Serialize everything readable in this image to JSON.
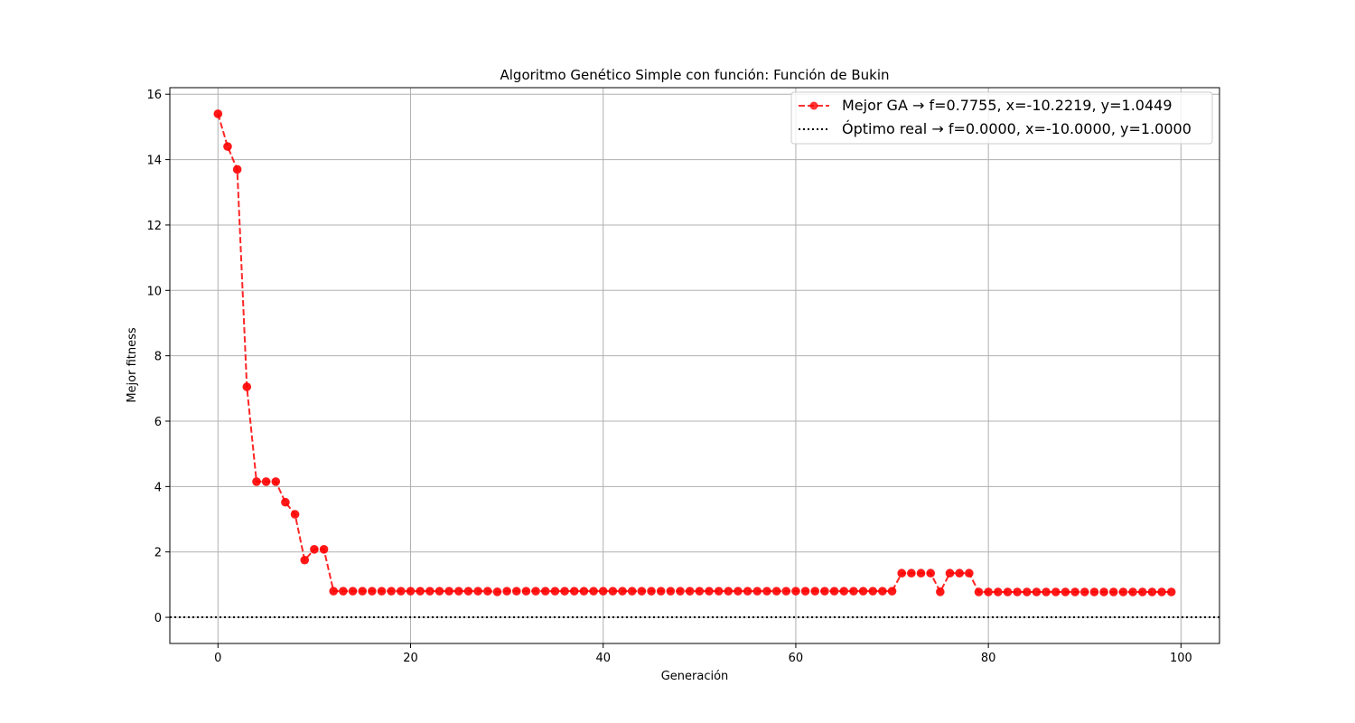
{
  "chart_data": {
    "type": "line",
    "title": "Algoritmo Genético Simple con función: Función de Bukin",
    "xlabel": "Generación",
    "ylabel": "Mejor fitness",
    "xlim": [
      -5,
      104
    ],
    "ylim": [
      -0.8,
      16.2
    ],
    "xticks": [
      0,
      20,
      40,
      60,
      80,
      100
    ],
    "yticks": [
      0,
      2,
      4,
      6,
      8,
      10,
      12,
      14,
      16
    ],
    "grid": true,
    "legend_position": "top-right",
    "series": [
      {
        "name": "Mejor GA → f=0.7755, x=-10.2219, y=1.0449",
        "style": "dashed line with circle markers",
        "color": "#ff0000",
        "x": [
          0,
          1,
          2,
          3,
          4,
          5,
          6,
          7,
          8,
          9,
          10,
          11,
          12,
          13,
          14,
          15,
          16,
          17,
          18,
          19,
          20,
          21,
          22,
          23,
          24,
          25,
          26,
          27,
          28,
          29,
          30,
          31,
          32,
          33,
          34,
          35,
          36,
          37,
          38,
          39,
          40,
          41,
          42,
          43,
          44,
          45,
          46,
          47,
          48,
          49,
          50,
          51,
          52,
          53,
          54,
          55,
          56,
          57,
          58,
          59,
          60,
          61,
          62,
          63,
          64,
          65,
          66,
          67,
          68,
          69,
          70,
          71,
          72,
          73,
          74,
          75,
          76,
          77,
          78,
          79,
          80,
          81,
          82,
          83,
          84,
          85,
          86,
          87,
          88,
          89,
          90,
          91,
          92,
          93,
          94,
          95,
          96,
          97,
          98,
          99
        ],
        "values": [
          15.4,
          14.4,
          13.7,
          7.05,
          4.15,
          4.15,
          4.15,
          3.52,
          3.15,
          1.75,
          2.08,
          2.08,
          0.8,
          0.8,
          0.8,
          0.8,
          0.8,
          0.8,
          0.8,
          0.8,
          0.8,
          0.8,
          0.8,
          0.8,
          0.8,
          0.8,
          0.8,
          0.8,
          0.8,
          0.78,
          0.8,
          0.8,
          0.8,
          0.8,
          0.8,
          0.8,
          0.8,
          0.8,
          0.8,
          0.8,
          0.8,
          0.8,
          0.8,
          0.8,
          0.8,
          0.8,
          0.8,
          0.8,
          0.8,
          0.8,
          0.8,
          0.8,
          0.8,
          0.8,
          0.8,
          0.8,
          0.8,
          0.8,
          0.8,
          0.8,
          0.8,
          0.8,
          0.8,
          0.8,
          0.8,
          0.8,
          0.8,
          0.8,
          0.8,
          0.8,
          0.8,
          1.35,
          1.35,
          1.35,
          1.35,
          0.78,
          1.35,
          1.35,
          1.35,
          0.7755,
          0.7755,
          0.7755,
          0.7755,
          0.7755,
          0.7755,
          0.7755,
          0.7755,
          0.7755,
          0.7755,
          0.7755,
          0.7755,
          0.7755,
          0.7755,
          0.7755,
          0.7755,
          0.7755,
          0.7755,
          0.7755,
          0.7755,
          0.7755
        ]
      },
      {
        "name": "Óptimo real → f=0.0000, x=-10.0000, y=1.0000",
        "style": "dotted horizontal line",
        "color": "#000000",
        "value": 0
      }
    ]
  }
}
